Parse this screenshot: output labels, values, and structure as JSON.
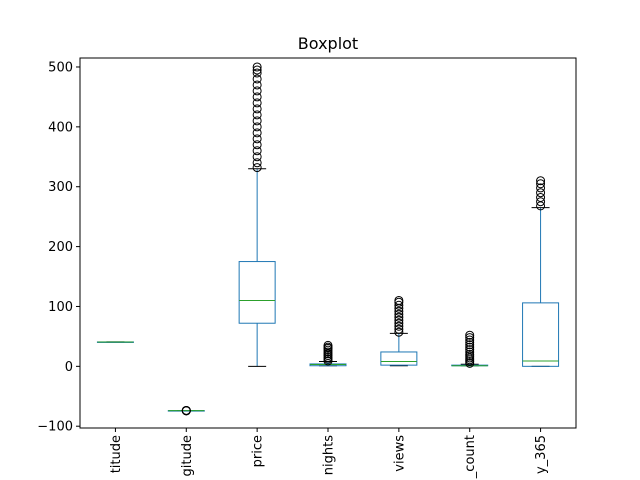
{
  "chart_data": {
    "type": "boxplot",
    "title": "Boxplot",
    "xlabel": "",
    "ylabel": "",
    "ylim": [
      -103,
      515
    ],
    "yticks": [
      -100,
      0,
      100,
      200,
      300,
      400,
      500
    ],
    "ytick_labels": [
      "−100",
      "0",
      "100",
      "200",
      "300",
      "400",
      "500"
    ],
    "grid": false,
    "legend": "none",
    "categories": [
      "titude",
      "gitude",
      "price",
      "nights",
      "views",
      "_count",
      "y_365"
    ],
    "colors": {
      "box": "#1f77b4",
      "median": "#2ca02c",
      "whisker": "#1f77b4",
      "cap": "#000000",
      "flier": "#000000",
      "axes": "#000000"
    },
    "boxes": [
      {
        "label": "titude",
        "whisker_low": 40.5,
        "q1": 40.7,
        "median": 40.72,
        "q3": 40.76,
        "whisker_high": 40.9,
        "fliers_low": [],
        "fliers_high": []
      },
      {
        "label": "gitude",
        "whisker_low": -74.05,
        "q1": -73.98,
        "median": -73.95,
        "q3": -73.93,
        "whisker_high": -73.87,
        "fliers_low": [
          -74.25,
          -74.2,
          -74.15,
          -74.1
        ],
        "fliers_high": [
          -73.8,
          -73.75,
          -73.7
        ]
      },
      {
        "label": "price",
        "whisker_low": 0,
        "q1": 72,
        "median": 110,
        "q3": 175,
        "whisker_high": 330,
        "fliers_low": [],
        "fliers_high": [
          332,
          340,
          350,
          360,
          370,
          380,
          390,
          400,
          410,
          420,
          430,
          440,
          450,
          460,
          470,
          480,
          490,
          495,
          500
        ]
      },
      {
        "label": "nights",
        "whisker_low": 1,
        "q1": 1,
        "median": 3,
        "q3": 4,
        "whisker_high": 8,
        "fliers_low": [],
        "fliers_high": [
          9,
          12,
          15,
          18,
          21,
          24,
          27,
          30,
          32,
          35
        ]
      },
      {
        "label": "views",
        "whisker_low": 1,
        "q1": 2,
        "median": 8,
        "q3": 24,
        "whisker_high": 55,
        "fliers_low": [],
        "fliers_high": [
          57,
          62,
          67,
          72,
          77,
          82,
          87,
          92,
          97,
          102,
          107,
          110
        ]
      },
      {
        "label": "_count",
        "whisker_low": 1,
        "q1": 1,
        "median": 1,
        "q3": 2,
        "whisker_high": 3.5,
        "fliers_low": [],
        "fliers_high": [
          5,
          8,
          11,
          14,
          17,
          20,
          24,
          28,
          32,
          36,
          40,
          44,
          48,
          52
        ]
      },
      {
        "label": "y_365",
        "whisker_low": 0,
        "q1": 0,
        "median": 9,
        "q3": 106,
        "whisker_high": 265,
        "fliers_low": [],
        "fliers_high": [
          268,
          275,
          282,
          290,
          298,
          305,
          310
        ]
      }
    ]
  }
}
